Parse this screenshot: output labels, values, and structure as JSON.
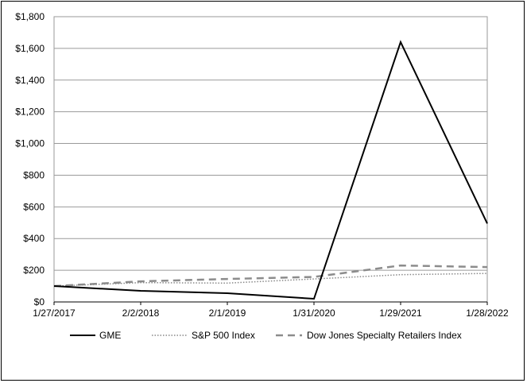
{
  "chart_data": {
    "type": "line",
    "title": "",
    "xlabel": "",
    "ylabel": "",
    "categories": [
      "1/27/2017",
      "2/2/2018",
      "2/1/2019",
      "1/31/2020",
      "1/29/2021",
      "1/28/2022"
    ],
    "ylim": [
      0,
      1800
    ],
    "yticks": [
      "$0",
      "$200",
      "$400",
      "$600",
      "$800",
      "$1,000",
      "$1,200",
      "$1,400",
      "$1,600",
      "$1,800"
    ],
    "grid": true,
    "legend_position": "bottom",
    "series": [
      {
        "name": "GME",
        "values": [
          100,
          70,
          55,
          20,
          1640,
          495
        ],
        "color": "#000000",
        "style": "solid"
      },
      {
        "name": "S&P 500 Index",
        "values": [
          100,
          122,
          119,
          145,
          172,
          180
        ],
        "color": "#888888",
        "style": "dotted"
      },
      {
        "name": "Dow Jones Specialty Retailers Index",
        "values": [
          100,
          130,
          145,
          158,
          230,
          220
        ],
        "color": "#8c8c8c",
        "style": "dashed"
      }
    ]
  }
}
